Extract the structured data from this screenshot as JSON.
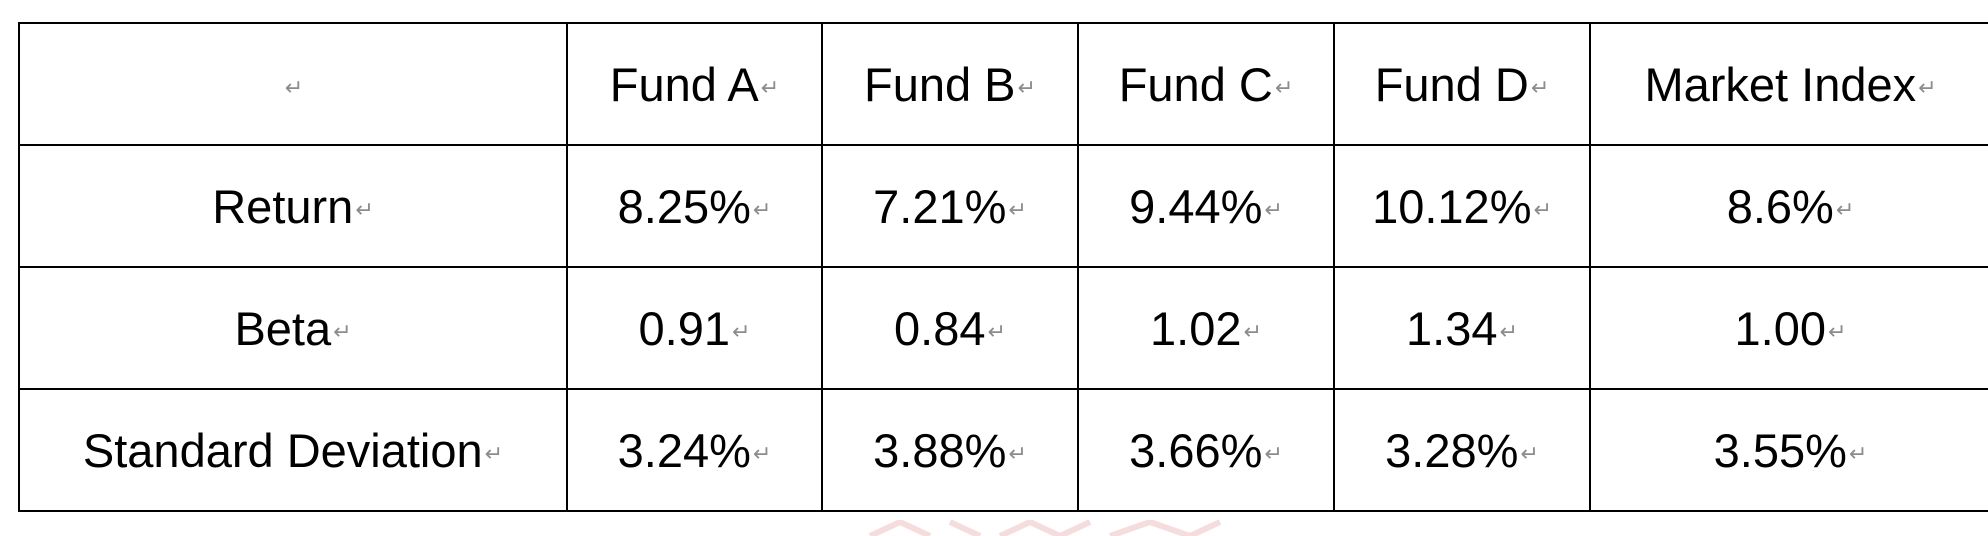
{
  "table": {
    "mark": "↵",
    "corner_label": "",
    "columns": [
      "Fund A",
      "Fund B",
      "Fund C",
      "Fund D",
      "Market Index"
    ],
    "rows": [
      {
        "label": "Return",
        "values": [
          "8.25%",
          "7.21%",
          "9.44%",
          "10.12%",
          "8.6%"
        ]
      },
      {
        "label": "Beta",
        "values": [
          "0.91",
          "0.84",
          "1.02",
          "1.34",
          "1.00"
        ]
      },
      {
        "label": "Standard Deviation",
        "values": [
          "3.24%",
          "3.88%",
          "3.66%",
          "3.28%",
          "3.55%"
        ]
      }
    ]
  },
  "colors": {
    "border": "#000000",
    "text": "#000000",
    "mark": "#8c8c8c",
    "watermark": "#e8a0a0"
  }
}
